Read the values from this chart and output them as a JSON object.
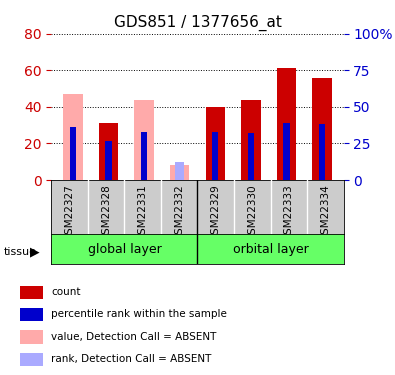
{
  "title": "GDS851 / 1377656_at",
  "samples": [
    "GSM22327",
    "GSM22328",
    "GSM22331",
    "GSM22332",
    "GSM22329",
    "GSM22330",
    "GSM22333",
    "GSM22334"
  ],
  "groups": [
    {
      "label": "global layer",
      "indices": [
        0,
        1,
        2,
        3
      ]
    },
    {
      "label": "orbital layer",
      "indices": [
        4,
        5,
        6,
        7
      ]
    }
  ],
  "group_color": "#66ff66",
  "count_values": [
    0,
    31,
    0,
    0,
    40,
    44,
    61,
    56
  ],
  "rank_values": [
    36,
    27,
    33,
    0,
    33,
    32,
    39,
    38
  ],
  "absent_value_values": [
    47,
    0,
    44,
    8,
    0,
    0,
    0,
    0
  ],
  "absent_rank_values": [
    0,
    0,
    0,
    12,
    0,
    0,
    0,
    0
  ],
  "count_color": "#cc0000",
  "rank_color": "#0000cc",
  "absent_value_color": "#ffaaaa",
  "absent_rank_color": "#aaaaff",
  "ylim_left": [
    0,
    80
  ],
  "ylim_right": [
    0,
    100
  ],
  "yticks_left": [
    0,
    20,
    40,
    60,
    80
  ],
  "yticks_right": [
    0,
    25,
    50,
    75,
    100
  ],
  "ytick_labels_right": [
    "0",
    "25",
    "50",
    "75",
    "100%"
  ],
  "grid_color": "#000000",
  "bar_width": 0.55,
  "left_tick_color": "#cc0000",
  "right_tick_color": "#0000cc",
  "tissue_label": "tissue",
  "background_color": "#ffffff",
  "plot_bg_color": "#ffffff",
  "legend_items": [
    {
      "color": "#cc0000",
      "label": "count"
    },
    {
      "color": "#0000cc",
      "label": "percentile rank within the sample"
    },
    {
      "color": "#ffaaaa",
      "label": "value, Detection Call = ABSENT"
    },
    {
      "color": "#aaaaff",
      "label": "rank, Detection Call = ABSENT"
    }
  ]
}
